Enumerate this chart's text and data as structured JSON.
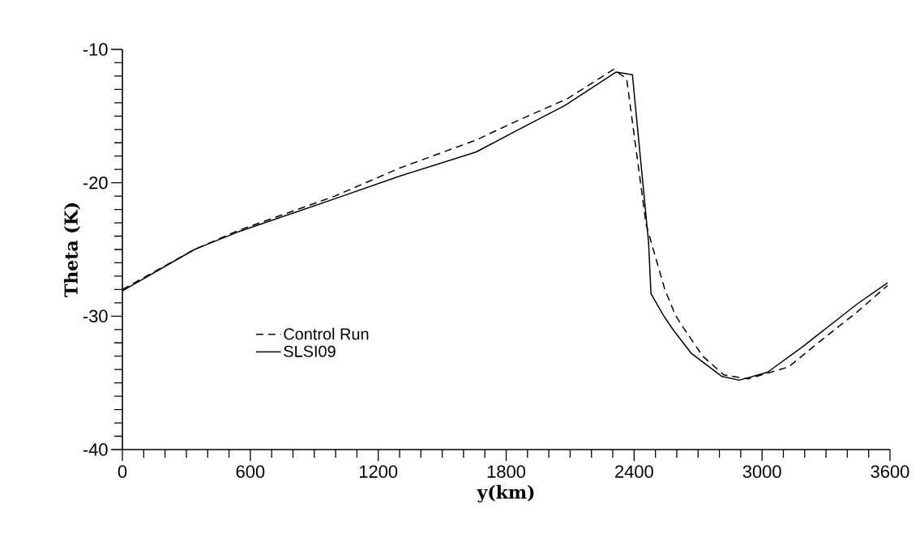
{
  "chart_data": {
    "type": "line",
    "xlabel": "y(km)",
    "ylabel": "Theta (K)",
    "xlim": [
      0,
      3600
    ],
    "ylim": [
      -40,
      -10
    ],
    "xticks": [
      0,
      600,
      1200,
      1800,
      2400,
      3000,
      3600
    ],
    "yticks": [
      -40,
      -30,
      -20,
      -10
    ],
    "grid": false,
    "legend": "bottom left",
    "marker": "none",
    "series": [
      {
        "name": "Control Run",
        "color": "#000000",
        "line_style": "dashed",
        "x": [
          0,
          338,
          540,
          996,
          1300,
          1658,
          1859,
          2087,
          2304,
          2365,
          2456,
          2517,
          2544,
          2593,
          2620,
          2722,
          2821,
          2935,
          3125,
          3255,
          3445,
          3589
        ],
        "values": [
          -28.0,
          -25.0,
          -23.6,
          -21.0,
          -18.9,
          -16.8,
          -15.3,
          -13.7,
          -11.5,
          -12.2,
          -23.1,
          -26.5,
          -28.0,
          -29.9,
          -30.6,
          -33.0,
          -34.4,
          -34.7,
          -33.8,
          -32.1,
          -29.7,
          -27.7
        ]
      },
      {
        "name": "SLSI09",
        "color": "#000000",
        "line_style": "solid",
        "x": [
          0,
          338,
          540,
          996,
          1300,
          1658,
          1859,
          2076,
          2316,
          2392,
          2468,
          2479,
          2536,
          2582,
          2669,
          2810,
          2893,
          3026,
          3190,
          3445,
          3589
        ],
        "values": [
          -28.1,
          -25.0,
          -23.7,
          -21.2,
          -19.5,
          -17.7,
          -16.0,
          -14.2,
          -11.7,
          -11.9,
          -24.5,
          -28.3,
          -29.9,
          -31.0,
          -32.8,
          -34.5,
          -34.8,
          -34.2,
          -32.3,
          -29.1,
          -27.5
        ]
      }
    ]
  }
}
